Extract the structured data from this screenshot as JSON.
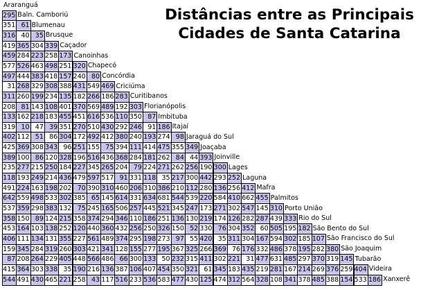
{
  "title": {
    "line1": "Distâncias entre as Principais",
    "line2": "Cidades de Santa Catarina"
  },
  "colors": {
    "shade": "#c9c5ea",
    "plain": "#ffffff"
  },
  "cities": [
    "Araranguá",
    "Baln. Camboriú",
    "Blumenau",
    "Brusque",
    "Caçador",
    "Canoinhas",
    "Chapecó",
    "Concórdia",
    "Criciúma",
    "Curitibanos",
    "Florianópolis",
    "Imbituba",
    "Itajaí",
    "Jaraguá do Sul",
    "Joaçaba",
    "Joinville",
    "Lages",
    "Laguna",
    "Mafra",
    "Palmitos",
    "Porto União",
    "Rio do Sul",
    "São Bento do Sul",
    "São Francisco do Sul",
    "São Joaquim",
    "Tubarão",
    "Videira",
    "Xanxerê"
  ],
  "distances": [
    [],
    [
      "295"
    ],
    [
      "351",
      "61"
    ],
    [
      "316",
      "40",
      "35"
    ],
    [
      "419",
      "365",
      "304",
      "339"
    ],
    [
      "459",
      "284",
      "223",
      "258",
      "173"
    ],
    [
      "577",
      "526",
      "463",
      "498",
      "251",
      "320"
    ],
    [
      "497",
      "444",
      "383",
      "418",
      "157",
      "240",
      "80"
    ],
    [
      "31",
      "268",
      "329",
      "308",
      "388",
      "431",
      "549",
      "469"
    ],
    [
      "311",
      "260",
      "199",
      "234",
      "135",
      "182",
      "266",
      "186",
      "283"
    ],
    [
      "208",
      "81",
      "143",
      "108",
      "401",
      "370",
      "569",
      "489",
      "192",
      "303"
    ],
    [
      "133",
      "162",
      "218",
      "183",
      "455",
      "451",
      "616",
      "536",
      "110",
      "350",
      "87"
    ],
    [
      "319",
      "10",
      "47",
      "39",
      "351",
      "270",
      "510",
      "430",
      "292",
      "246",
      "91",
      "186"
    ],
    [
      "402",
      "112",
      "51",
      "86",
      "304",
      "172",
      "492",
      "412",
      "380",
      "240",
      "193",
      "274",
      "98"
    ],
    [
      "425",
      "369",
      "308",
      "343",
      "96",
      "251",
      "155",
      "75",
      "394",
      "111",
      "414",
      "475",
      "355",
      "349"
    ],
    [
      "389",
      "100",
      "86",
      "120",
      "328",
      "196",
      "516",
      "436",
      "368",
      "284",
      "181",
      "262",
      "84",
      "44",
      "393"
    ],
    [
      "235",
      "277",
      "215",
      "250",
      "184",
      "227",
      "345",
      "265",
      "204",
      "79",
      "224",
      "271",
      "262",
      "256",
      "190",
      "300"
    ],
    [
      "118",
      "193",
      "249",
      "214",
      "436",
      "479",
      "597",
      "517",
      "91",
      "331",
      "118",
      "35",
      "217",
      "300",
      "442",
      "293",
      "252"
    ],
    [
      "491",
      "224",
      "163",
      "198",
      "202",
      "70",
      "390",
      "310",
      "460",
      "206",
      "310",
      "386",
      "210",
      "112",
      "280",
      "136",
      "256",
      "412"
    ],
    [
      "642",
      "559",
      "498",
      "533",
      "302",
      "385",
      "65",
      "145",
      "614",
      "331",
      "634",
      "681",
      "544",
      "539",
      "220",
      "584",
      "410",
      "662",
      "455"
    ],
    [
      "537",
      "359",
      "298",
      "383",
      "132",
      "75",
      "245",
      "165",
      "506",
      "257",
      "445",
      "521",
      "345",
      "247",
      "173",
      "271",
      "302",
      "547",
      "145",
      "310"
    ],
    [
      "358",
      "150",
      "89",
      "124",
      "215",
      "358",
      "374",
      "294",
      "346",
      "110",
      "186",
      "251",
      "136",
      "130",
      "219",
      "174",
      "126",
      "282",
      "287",
      "439",
      "333"
    ],
    [
      "453",
      "164",
      "103",
      "138",
      "252",
      "120",
      "440",
      "360",
      "432",
      "256",
      "250",
      "326",
      "150",
      "52",
      "330",
      "76",
      "304",
      "352",
      "60",
      "505",
      "195",
      "182"
    ],
    [
      "406",
      "111",
      "134",
      "131",
      "355",
      "227",
      "561",
      "489",
      "374",
      "295",
      "198",
      "273",
      "97",
      "55",
      "420",
      "35",
      "311",
      "304",
      "167",
      "594",
      "302",
      "185",
      "107"
    ],
    [
      "159",
      "345",
      "284",
      "319",
      "260",
      "303",
      "421",
      "341",
      "128",
      "155",
      "277",
      "195",
      "367",
      "325",
      "266",
      "369",
      "76",
      "176",
      "332",
      "486",
      "378",
      "195",
      "282",
      "380"
    ],
    [
      "87",
      "208",
      "264",
      "229",
      "405",
      "448",
      "566",
      "486",
      "66",
      "300",
      "133",
      "50",
      "232",
      "315",
      "411",
      "302",
      "221",
      "31",
      "477",
      "631",
      "485",
      "297",
      "370",
      "319",
      "145"
    ],
    [
      "415",
      "364",
      "303",
      "338",
      "35",
      "190",
      "216",
      "136",
      "387",
      "106",
      "407",
      "454",
      "350",
      "321",
      "61",
      "345",
      "183",
      "435",
      "219",
      "281",
      "167",
      "214",
      "269",
      "376",
      "259",
      "404"
    ],
    [
      "544",
      "491",
      "430",
      "465",
      "221",
      "258",
      "43",
      "117",
      "516",
      "233",
      "536",
      "583",
      "477",
      "430",
      "125",
      "474",
      "312",
      "564",
      "328",
      "108",
      "341",
      "378",
      "485",
      "388",
      "154",
      "533",
      "186"
    ]
  ]
}
